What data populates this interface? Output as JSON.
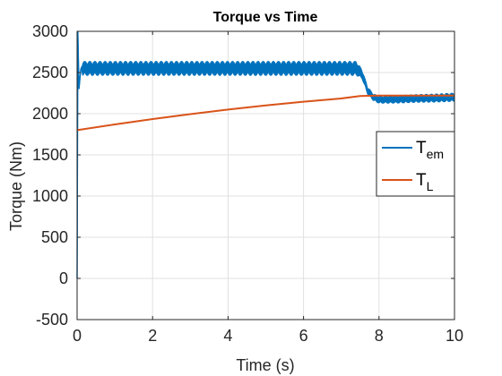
{
  "chart_data": {
    "type": "line",
    "title": "Torque vs Time",
    "xlabel": "Time (s)",
    "ylabel": "Torque (Nm)",
    "xlim": [
      0,
      10
    ],
    "ylim": [
      -500,
      3000
    ],
    "xticks": [
      0,
      2,
      4,
      6,
      8,
      10
    ],
    "yticks": [
      -500,
      0,
      500,
      1000,
      1500,
      2000,
      2500,
      3000
    ],
    "grid": true,
    "legend_position": "right",
    "series": [
      {
        "name": "T_em",
        "legend_main": "T",
        "legend_sub": "em",
        "color": "#0072BD",
        "band": true,
        "points": [
          [
            0,
            0
          ],
          [
            0.02,
            3000
          ],
          [
            0.05,
            2300
          ],
          [
            0.1,
            2550
          ],
          [
            0.5,
            2550
          ],
          [
            1,
            2550
          ],
          [
            2,
            2550
          ],
          [
            3,
            2550
          ],
          [
            4,
            2550
          ],
          [
            5,
            2550
          ],
          [
            6,
            2550
          ],
          [
            7,
            2550
          ],
          [
            7.4,
            2550
          ],
          [
            7.55,
            2480
          ],
          [
            7.7,
            2280
          ],
          [
            7.85,
            2200
          ],
          [
            8.0,
            2170
          ],
          [
            8.5,
            2175
          ],
          [
            9.0,
            2185
          ],
          [
            9.5,
            2190
          ],
          [
            10,
            2200
          ]
        ],
        "noise_amplitude": [
          [
            0,
            0
          ],
          [
            0.1,
            0
          ],
          [
            0.15,
            90
          ],
          [
            7.4,
            90
          ],
          [
            7.55,
            60
          ],
          [
            7.8,
            45
          ],
          [
            8.2,
            50
          ],
          [
            10,
            55
          ]
        ]
      },
      {
        "name": "T_L",
        "legend_main": "T",
        "legend_sub": "L",
        "color": "#D95319",
        "band": false,
        "points": [
          [
            0,
            1800
          ],
          [
            1,
            1870
          ],
          [
            2,
            1935
          ],
          [
            3,
            1995
          ],
          [
            4,
            2050
          ],
          [
            5,
            2100
          ],
          [
            6,
            2145
          ],
          [
            7,
            2185
          ],
          [
            7.5,
            2215
          ],
          [
            8,
            2220
          ],
          [
            9,
            2220
          ],
          [
            10,
            2220
          ]
        ]
      }
    ]
  }
}
